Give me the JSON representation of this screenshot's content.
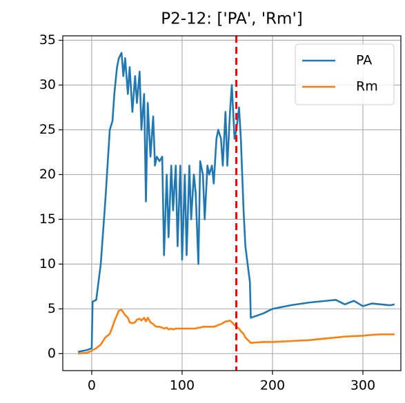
{
  "chart_data": {
    "type": "line",
    "title": "P2-12: ['PA', 'Rm']",
    "x": [
      -15,
      -5,
      0,
      1,
      5,
      10,
      15,
      20,
      23,
      25,
      28,
      30,
      33,
      35,
      37,
      40,
      42,
      45,
      48,
      50,
      53,
      55,
      58,
      60,
      62,
      65,
      68,
      70,
      72,
      75,
      78,
      80,
      83,
      85,
      88,
      90,
      93,
      95,
      98,
      100,
      103,
      105,
      108,
      110,
      113,
      115,
      118,
      120,
      123,
      125,
      128,
      130,
      133,
      135,
      138,
      140,
      143,
      145,
      148,
      150,
      153,
      155,
      158,
      160,
      163,
      165,
      168,
      170,
      175,
      176,
      190,
      200,
      220,
      240,
      260,
      270,
      280,
      290,
      300,
      310,
      320,
      330,
      335
    ],
    "series": [
      {
        "name": "PA",
        "color": "#1f77b4",
        "values": [
          0.2,
          0.4,
          0.6,
          5.8,
          6,
          10,
          17,
          25,
          26,
          29,
          32,
          33,
          33.6,
          31,
          33,
          29,
          32,
          27,
          31,
          28,
          31.5,
          25,
          29,
          17,
          28,
          22,
          26.5,
          21,
          22,
          21.5,
          22,
          11,
          20,
          13,
          21,
          16,
          21,
          12,
          21,
          10.5,
          20,
          11,
          21,
          15,
          20,
          18,
          10,
          21.5,
          20,
          15,
          21,
          20,
          21,
          19,
          24,
          25,
          24,
          21,
          27,
          21,
          27,
          30,
          24,
          25,
          27.5,
          24,
          16,
          12,
          8,
          4,
          4.5,
          5,
          5.4,
          5.7,
          5.9,
          6,
          5.5,
          5.9,
          5.3,
          5.6,
          5.5,
          5.4,
          5.5
        ]
      },
      {
        "name": "Rm",
        "color": "#ff7f0e",
        "values": [
          0,
          0.1,
          0.3,
          0.4,
          0.6,
          1,
          1.8,
          2.2,
          3,
          3.6,
          4.3,
          4.8,
          4.9,
          4.6,
          4.3,
          4,
          3.5,
          3.4,
          3.5,
          3.8,
          3.9,
          3.7,
          4,
          3.6,
          4,
          3.5,
          3.3,
          3.1,
          3,
          3,
          2.9,
          2.8,
          2.9,
          2.7,
          2.8,
          2.7,
          2.8,
          2.8,
          2.8,
          2.8,
          2.8,
          2.8,
          2.8,
          2.8,
          2.8,
          2.8,
          2.9,
          2.9,
          3,
          3,
          3,
          3,
          3,
          3,
          3.1,
          3.2,
          3.3,
          3.4,
          3.6,
          3.6,
          3.7,
          3.5,
          3.2,
          3,
          2.8,
          2.5,
          2.2,
          1.8,
          1.3,
          1.2,
          1.3,
          1.3,
          1.4,
          1.5,
          1.7,
          1.8,
          1.9,
          1.95,
          2,
          2.1,
          2.15,
          2.15,
          2.15
        ]
      }
    ],
    "vline": {
      "x": 160,
      "color": "#ff0000"
    },
    "xlim": [
      -32,
      342
    ],
    "ylim": [
      -1.9,
      35.5
    ],
    "xticks": [
      0,
      100,
      200,
      300
    ],
    "yticks": [
      0,
      5,
      10,
      15,
      20,
      25,
      30,
      35
    ],
    "grid": true,
    "legend": "upper right"
  }
}
